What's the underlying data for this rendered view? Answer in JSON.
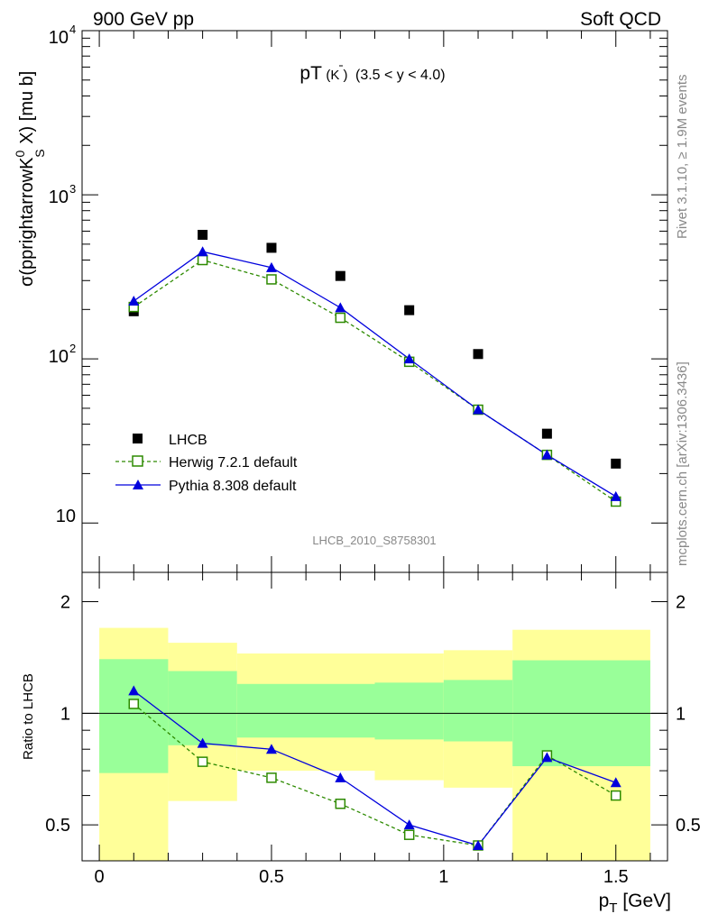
{
  "header": {
    "left": "900 GeV pp",
    "right": "Soft QCD"
  },
  "side": {
    "rivet": "Rivet 3.1.10, ≥ 1.9M events",
    "mcplots": "mcplots.cern.ch [arXiv:1306.3436]"
  },
  "colors": {
    "data": "#000000",
    "herwig": "#2d8a00",
    "pythia": "#0000dd",
    "band_outer": "#ffff99",
    "band_inner": "#99ff99"
  },
  "chart_data": [
    {
      "type": "scatter",
      "title_main": "pT",
      "title_particle": "(K )",
      "title_range": "(3.5 < y < 4.0)",
      "ylabel": "σ(pprightarrowK",
      "ylabel_sup": "0",
      "ylabel_sub": "S",
      "ylabel_end": " X) [mu b]",
      "yscale": "log",
      "ylim": [
        5,
        10000
      ],
      "xlim": [
        -0.05,
        1.65
      ],
      "x": [
        0.1,
        0.3,
        0.5,
        0.7,
        0.9,
        1.1,
        1.3,
        1.5
      ],
      "ytick_labels": [
        {
          "value": 10,
          "base": "10",
          "exp": ""
        },
        {
          "value": 100,
          "base": "10",
          "exp": "2"
        },
        {
          "value": 1000,
          "base": "10",
          "exp": "3"
        },
        {
          "value": 10000,
          "base": "10",
          "exp": "4"
        }
      ],
      "watermark": "LHCB_2010_S8758301",
      "series": [
        {
          "name": "LHCB",
          "marker": "square",
          "values": [
            195,
            570,
            475,
            320,
            198,
            107,
            35,
            23
          ]
        },
        {
          "name": "Herwig 7.2.1 default",
          "marker": "open-square",
          "line": "dashed",
          "values": [
            207,
            400,
            305,
            178,
            96,
            49,
            26,
            13.5
          ]
        },
        {
          "name": "Pythia 8.308 default",
          "marker": "triangle",
          "line": "solid",
          "values": [
            225,
            450,
            360,
            205,
            100,
            49,
            26,
            14.5
          ]
        }
      ],
      "legend_position": "lower-left"
    },
    {
      "type": "line",
      "ylabel": "Ratio to LHCB",
      "yscale": "log",
      "ylim": [
        0.4,
        2.4
      ],
      "xlim": [
        -0.05,
        1.65
      ],
      "xlabel": "p",
      "xlabel_sub": "T",
      "xlabel_end": " [GeV]",
      "xtick_labels": [
        {
          "value": 0,
          "label": "0"
        },
        {
          "value": 0.5,
          "label": "0.5"
        },
        {
          "value": 1,
          "label": "1"
        },
        {
          "value": 1.5,
          "label": "1.5"
        }
      ],
      "ytick_labels": [
        {
          "value": 0.5,
          "label": "0.5"
        },
        {
          "value": 1,
          "label": "1"
        },
        {
          "value": 2,
          "label": "2"
        }
      ],
      "reference_line": 1,
      "bands": [
        {
          "x0": 0.0,
          "x1": 0.2,
          "outer": [
            0.4,
            1.7
          ],
          "inner": [
            0.69,
            1.4
          ]
        },
        {
          "x0": 0.2,
          "x1": 0.4,
          "outer": [
            0.58,
            1.55
          ],
          "inner": [
            0.82,
            1.3
          ]
        },
        {
          "x0": 0.4,
          "x1": 0.8,
          "outer": [
            0.7,
            1.45
          ],
          "inner": [
            0.86,
            1.2
          ]
        },
        {
          "x0": 0.8,
          "x1": 1.0,
          "outer": [
            0.66,
            1.45
          ],
          "inner": [
            0.85,
            1.21
          ]
        },
        {
          "x0": 1.0,
          "x1": 1.2,
          "outer": [
            0.63,
            1.48
          ],
          "inner": [
            0.84,
            1.23
          ]
        },
        {
          "x0": 1.2,
          "x1": 1.6,
          "outer": [
            0.4,
            1.68
          ],
          "inner": [
            0.72,
            1.39
          ]
        }
      ],
      "x": [
        0.1,
        0.3,
        0.5,
        0.7,
        0.9,
        1.1,
        1.3,
        1.5
      ],
      "series": [
        {
          "name": "Herwig 7.2.1 default",
          "marker": "open-square",
          "line": "dashed",
          "values": [
            1.06,
            0.74,
            0.67,
            0.57,
            0.47,
            0.44,
            0.77,
            0.6
          ]
        },
        {
          "name": "Pythia 8.308 default",
          "marker": "triangle",
          "line": "solid",
          "values": [
            1.15,
            0.83,
            0.8,
            0.67,
            0.5,
            0.44,
            0.76,
            0.65
          ]
        }
      ]
    }
  ]
}
